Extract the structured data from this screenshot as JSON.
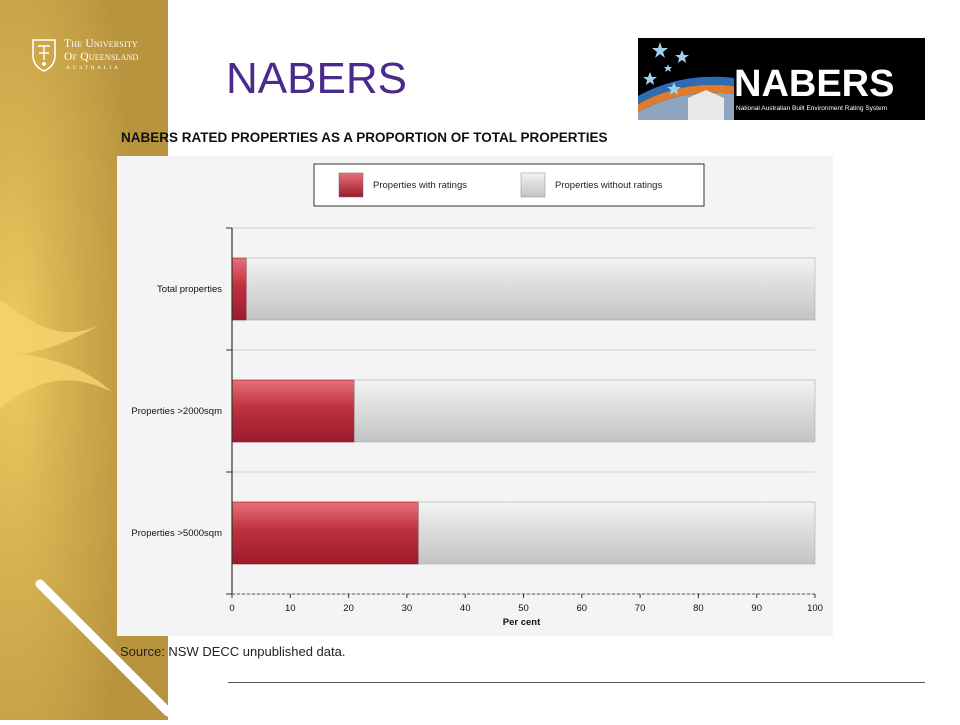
{
  "slide": {
    "title": "NABERS"
  },
  "university_logo": {
    "line1": "The University",
    "line2": "Of Queensland",
    "line3": "AUSTRALIA"
  },
  "nabers_logo": {
    "wordmark": "NABERS",
    "tagline": "National Australian Built Environment Rating System"
  },
  "source": "Source: NSW DECC unpublished data.",
  "colors": {
    "sidebar_gold": "#c9a64a",
    "sidebar_light": "#e9c35c",
    "title_purple": "#4a2a8a",
    "rated": "#b3283a",
    "unrated": "#d6d6d6"
  },
  "chart_data": {
    "type": "bar",
    "orientation": "horizontal",
    "stacked": true,
    "title": "NABERS RATED PROPERTIES AS A PROPORTION OF TOTAL PROPERTIES",
    "categories": [
      "Total properties",
      "Properties >2000sqm",
      "Properties >5000sqm"
    ],
    "series": [
      {
        "name": "Properties with ratings",
        "color": "#b3283a",
        "values": [
          2.5,
          21,
          32
        ]
      },
      {
        "name": "Properties without ratings",
        "color": "#d6d6d6",
        "values": [
          97.5,
          79,
          68
        ]
      }
    ],
    "xlabel": "Per cent",
    "xlim": [
      0,
      100
    ],
    "xticks": [
      0,
      10,
      20,
      30,
      40,
      50,
      60,
      70,
      80,
      90,
      100
    ],
    "grid": true,
    "legend": "top"
  }
}
